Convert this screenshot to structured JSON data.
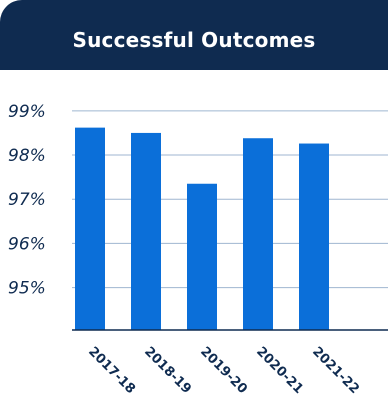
{
  "header": {
    "title": "Successful Outcomes"
  },
  "colors": {
    "header_bg": "#0f2b50",
    "bar": "#0b6fd9",
    "grid": "#9fb6d0",
    "axis": "#0f2b50"
  },
  "chart_data": {
    "type": "bar",
    "title": "Successful Outcomes",
    "categories": [
      "2017-18",
      "2018-19",
      "2019-20",
      "2020-21",
      "2021-22"
    ],
    "values": [
      98.62,
      98.5,
      97.35,
      98.38,
      98.26
    ],
    "yticks": [
      "95%",
      "96%",
      "97%",
      "98%",
      "99%"
    ],
    "ytick_values": [
      95,
      96,
      97,
      98,
      99
    ],
    "ylim": [
      94.04,
      99.2
    ],
    "grid": true,
    "xlabel": "",
    "ylabel": ""
  }
}
